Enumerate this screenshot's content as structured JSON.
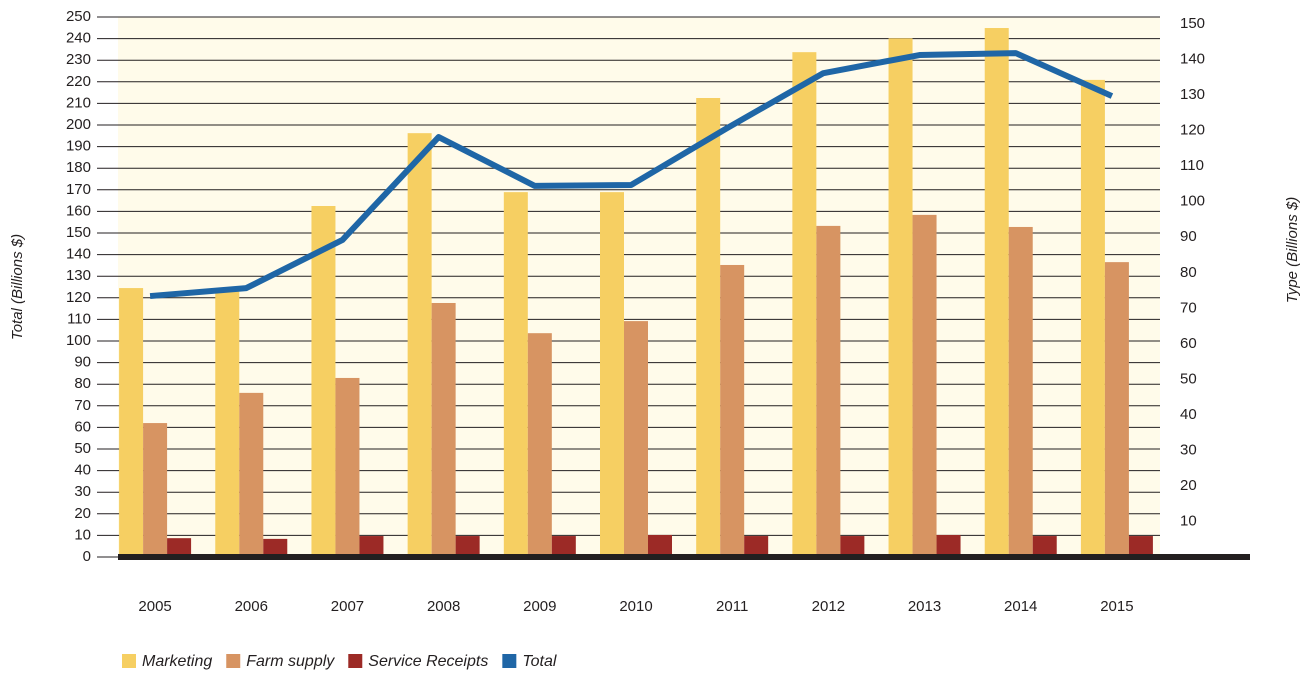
{
  "chart_data": {
    "type": "bar",
    "categories": [
      "2005",
      "2006",
      "2007",
      "2008",
      "2009",
      "2010",
      "2011",
      "2012",
      "2013",
      "2014",
      "2015"
    ],
    "series": [
      {
        "name": "Marketing",
        "color": "#f6cf62",
        "axis": "y2",
        "type": "bar",
        "values": [
          75.7,
          75.0,
          98.8,
          119.3,
          102.7,
          102.7,
          129.2,
          142.1,
          146.0,
          148.9,
          134.3
        ]
      },
      {
        "name": "Farm supply",
        "color": "#d79462",
        "axis": "y2",
        "type": "bar",
        "values": [
          37.7,
          46.2,
          50.4,
          71.5,
          63.0,
          66.4,
          82.2,
          93.2,
          96.3,
          92.9,
          83.0
        ]
      },
      {
        "name": "Service Receipts",
        "color": "#9c2a26",
        "axis": "y2",
        "type": "bar",
        "values": [
          5.3,
          5.1,
          5.9,
          5.9,
          5.9,
          6.2,
          5.9,
          5.9,
          6.2,
          5.9,
          5.9
        ]
      },
      {
        "name": "Total",
        "color": "#1f66a6",
        "type": "line",
        "values": [
          120.8,
          124.5,
          146.8,
          194.4,
          171.8,
          172.2,
          198.6,
          224.0,
          232.4,
          233.3,
          213.4
        ]
      }
    ],
    "ylabel": "Total (Billions $)",
    "y2label": "Type (Billions $)",
    "ylim": [
      0,
      250
    ],
    "yticks": [
      0,
      10,
      20,
      30,
      40,
      50,
      60,
      70,
      80,
      90,
      100,
      110,
      120,
      130,
      140,
      150,
      160,
      170,
      180,
      190,
      200,
      210,
      220,
      230,
      240,
      250
    ],
    "y2lim": [
      0,
      152
    ],
    "y2ticks": [
      10,
      20,
      30,
      40,
      50,
      60,
      70,
      80,
      90,
      100,
      110,
      120,
      130,
      140,
      150
    ],
    "grid": true,
    "legend": "bottom-left"
  }
}
